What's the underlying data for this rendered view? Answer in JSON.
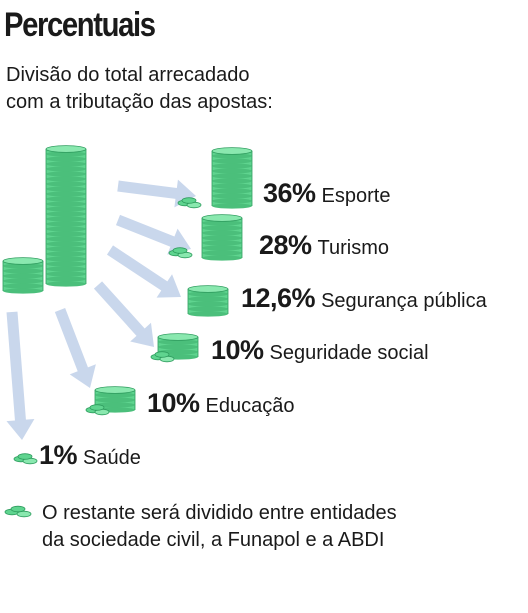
{
  "title": "Percentuais",
  "subtitle": [
    "Divisão do total arrecadado",
    "com a tributação das apostas:"
  ],
  "items": [
    {
      "percent": "36%",
      "label": "Esporte",
      "value": 36
    },
    {
      "percent": "28%",
      "label": "Turismo",
      "value": 28
    },
    {
      "percent": "12,6%",
      "label": "Segurança pública",
      "value": 12.6
    },
    {
      "percent": "10%",
      "label": "Seguridade social",
      "value": 10
    },
    {
      "percent": "10%",
      "label": "Educação",
      "value": 10
    },
    {
      "percent": "1%",
      "label": "Saúde",
      "value": 1
    }
  ],
  "note": [
    "O restante será dividido entre entidades",
    "da sociedade civil, a Funapol e a ABDI"
  ],
  "colors": {
    "coin_fill": "#5fd48f",
    "coin_top": "#8ae8af",
    "coin_edge": "#2e9c5e",
    "arrow": "#c9d7ec",
    "text": "#1a1a1a"
  },
  "icons": [
    "coin-stack-icon",
    "loose-coins-icon",
    "arrow-icon"
  ]
}
